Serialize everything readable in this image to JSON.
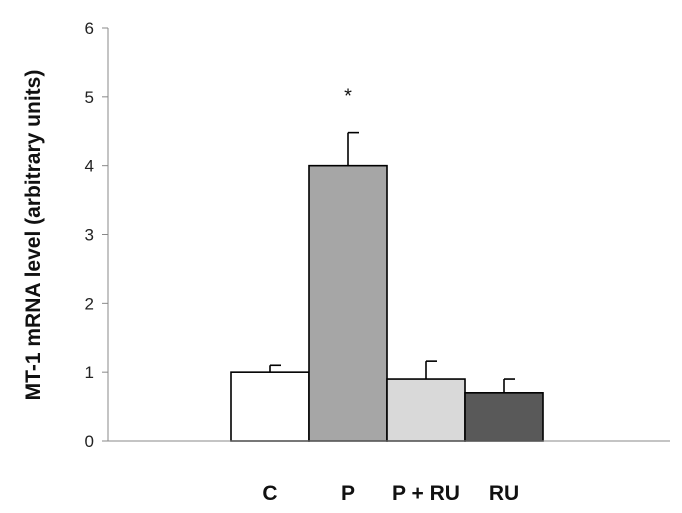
{
  "chart_data": {
    "type": "bar",
    "categories": [
      "C",
      "P",
      "P + RU",
      "RU"
    ],
    "values": [
      1.0,
      4.0,
      0.9,
      0.7
    ],
    "error_upper": [
      1.1,
      4.48,
      1.16,
      0.9
    ],
    "bar_colors": [
      "#ffffff",
      "#a6a6a6",
      "#d9d9d9",
      "#595959"
    ],
    "ylabel": "MT-1 mRNA level (arbitrary units)",
    "ylim": [
      0,
      6
    ],
    "yticks": [
      "0",
      "1",
      "2",
      "3",
      "4",
      "5",
      "6"
    ],
    "annotations": [
      {
        "category": "P",
        "text": "*"
      }
    ],
    "grid": false
  }
}
